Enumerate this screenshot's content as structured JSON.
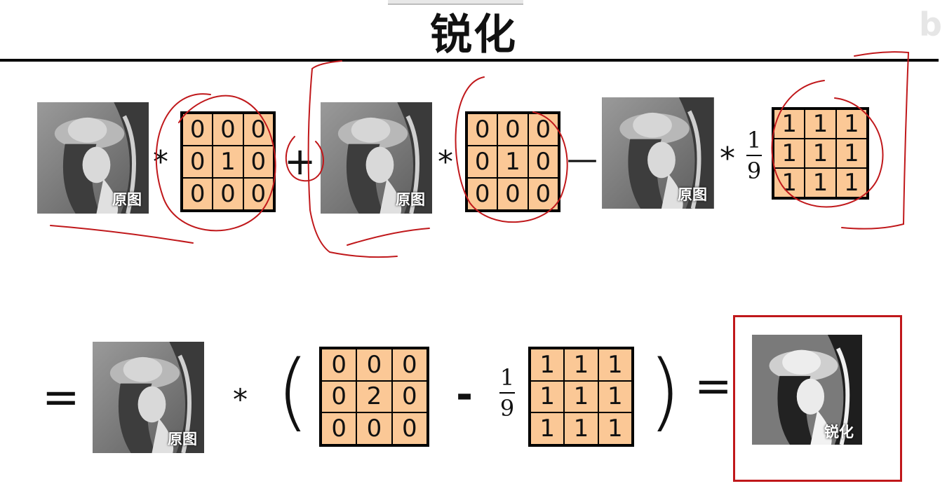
{
  "title": "锐化",
  "photo_labels": {
    "original": "原图",
    "sharpened": "锐化"
  },
  "operators": {
    "convolve": "*",
    "plus": "+",
    "minus": "—",
    "minus_bold": "-",
    "equals": "=",
    "paren_open": "(",
    "paren_close": ")"
  },
  "fraction": {
    "numerator": "1",
    "denominator": "9"
  },
  "kernels": {
    "identity": [
      [
        "0",
        "0",
        "0"
      ],
      [
        "0",
        "1",
        "0"
      ],
      [
        "0",
        "0",
        "0"
      ]
    ],
    "mean": [
      [
        "1",
        "1",
        "1"
      ],
      [
        "1",
        "1",
        "1"
      ],
      [
        "1",
        "1",
        "1"
      ]
    ],
    "doubled_identity": [
      [
        "0",
        "0",
        "0"
      ],
      [
        "0",
        "2",
        "0"
      ],
      [
        "0",
        "0",
        "0"
      ]
    ]
  },
  "colors": {
    "kernel_fill": "#fbc896",
    "annotation_red": "#c0181b"
  }
}
